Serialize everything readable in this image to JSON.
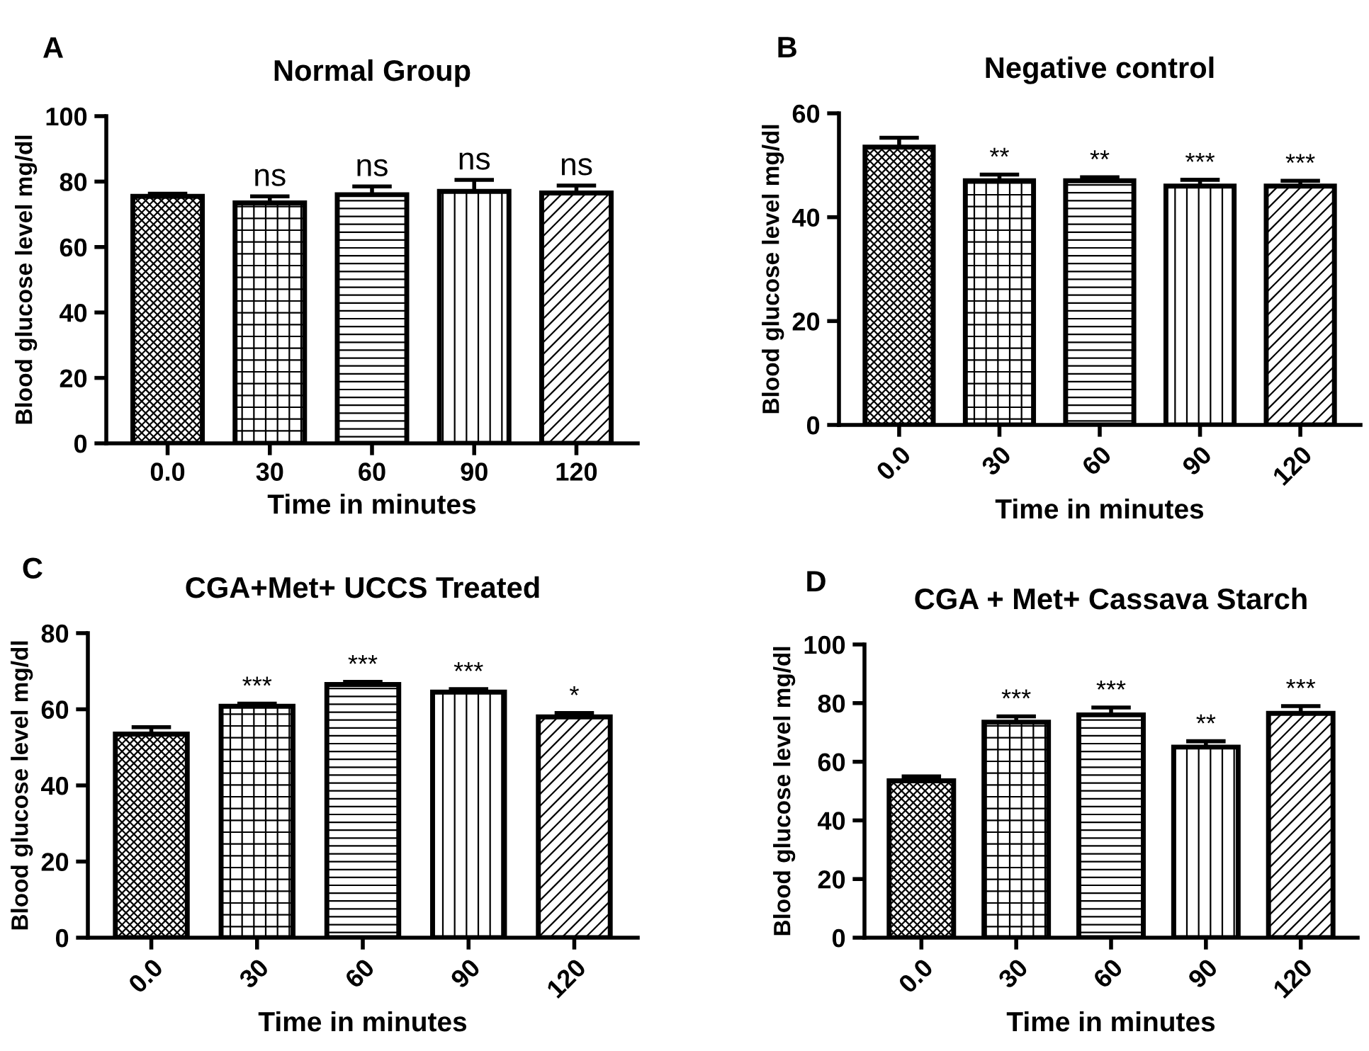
{
  "chart_data": [
    {
      "type": "bar",
      "title": "Normal Group",
      "xlabel": "Time in minutes",
      "ylabel": "Blood glucose level mg/dl",
      "categories": [
        "0.0",
        "30",
        "60",
        "90",
        "120"
      ],
      "series": [
        {
          "color": "#000000",
          "values": [
            75.5,
            73.5,
            76,
            77,
            76.5
          ],
          "errors": [
            0.8,
            2,
            2.5,
            3.5,
            2.3
          ]
        }
      ],
      "ylim": [
        0,
        100
      ],
      "yticks": [
        0,
        20,
        40,
        60,
        80,
        100
      ],
      "grid": false,
      "legend": false,
      "annotations": [
        "A",
        {
          "text": "ns",
          "x": "30",
          "y": 75.5
        },
        {
          "text": "ns",
          "x": "60",
          "y": 78.5
        },
        {
          "text": "ns",
          "x": "90",
          "y": 80.5
        },
        {
          "text": "ns",
          "x": "120",
          "y": 78.8
        }
      ]
    },
    {
      "type": "bar",
      "title": "Negative control",
      "xlabel": "Time in minutes",
      "ylabel": "Blood glucose level mg/dl",
      "categories": [
        "0.0",
        "30",
        "60",
        "90",
        "120"
      ],
      "series": [
        {
          "color": "#000000",
          "values": [
            53.5,
            47,
            47,
            46,
            46
          ],
          "errors": [
            1.8,
            1.2,
            0.7,
            1.2,
            1
          ]
        }
      ],
      "ylim": [
        0,
        60
      ],
      "yticks": [
        0,
        20,
        40,
        60
      ],
      "grid": false,
      "legend": false,
      "annotations": [
        "B",
        {
          "text": "**",
          "x": "30",
          "y": 48.2
        },
        {
          "text": "**",
          "x": "60",
          "y": 47.7
        },
        {
          "text": "***",
          "x": "90",
          "y": 47.2
        },
        {
          "text": "***",
          "x": "120",
          "y": 47
        }
      ]
    },
    {
      "type": "bar",
      "title": "CGA+Met+ UCCS Treated",
      "xlabel": "Time in minutes",
      "ylabel": "Blood glucose level mg/dl",
      "categories": [
        "0.0",
        "30",
        "60",
        "90",
        "120"
      ],
      "series": [
        {
          "color": "#000000",
          "values": [
            53.5,
            60.8,
            66.5,
            64.5,
            58
          ],
          "errors": [
            1.8,
            0.7,
            0.7,
            0.8,
            1
          ]
        }
      ],
      "ylim": [
        0,
        80
      ],
      "yticks": [
        0,
        20,
        40,
        60,
        80
      ],
      "grid": false,
      "legend": false,
      "annotations": [
        "C",
        {
          "text": "***",
          "x": "30",
          "y": 61.5
        },
        {
          "text": "***",
          "x": "60",
          "y": 67.2
        },
        {
          "text": "***",
          "x": "90",
          "y": 65.3
        },
        {
          "text": "*",
          "x": "120",
          "y": 59
        }
      ]
    },
    {
      "type": "bar",
      "title": "CGA + Met+ Cassava Starch",
      "xlabel": "Time in minutes",
      "ylabel": "Blood glucose level mg/dl",
      "categories": [
        "0.0",
        "30",
        "60",
        "90",
        "120"
      ],
      "series": [
        {
          "color": "#000000",
          "values": [
            53.5,
            73.5,
            76,
            65,
            76.5
          ],
          "errors": [
            1.5,
            2,
            2.5,
            2,
            2.5
          ]
        }
      ],
      "ylim": [
        0,
        100
      ],
      "yticks": [
        0,
        20,
        40,
        60,
        80,
        100
      ],
      "grid": false,
      "legend": false,
      "annotations": [
        "D",
        {
          "text": "***",
          "x": "30",
          "y": 75.5
        },
        {
          "text": "***",
          "x": "60",
          "y": 78.5
        },
        {
          "text": "**",
          "x": "90",
          "y": 67
        },
        {
          "text": "***",
          "x": "120",
          "y": 79
        }
      ]
    }
  ]
}
